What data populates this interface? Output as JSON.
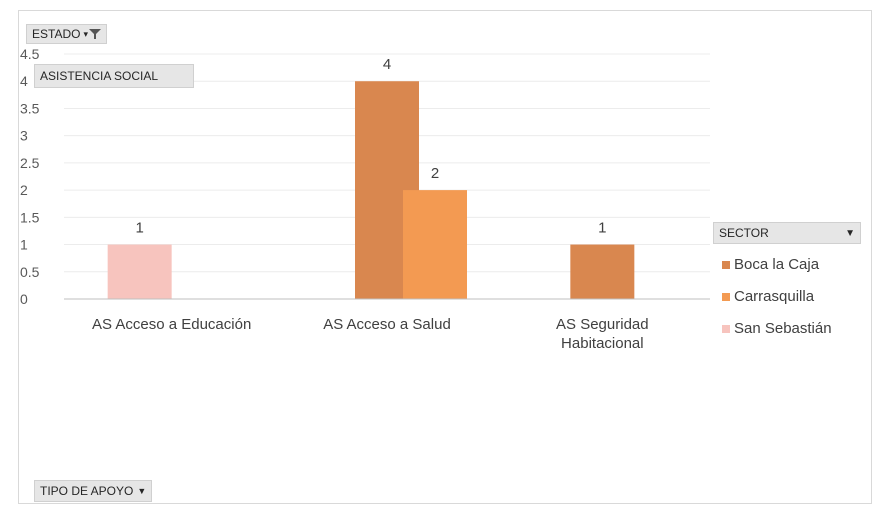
{
  "filters": {
    "estado_label": "ESTADO",
    "asistencia_label": "ASISTENCIA SOCIAL",
    "tipo_label": "TIPO DE APOYO"
  },
  "legend": {
    "title": "SECTOR",
    "items": [
      {
        "label": "Boca la Caja",
        "color": "#d9874f"
      },
      {
        "label": "Carrasquilla",
        "color": "#f39a52"
      },
      {
        "label": "San Sebastián",
        "color": "#f7c4be"
      }
    ]
  },
  "chart_data": {
    "type": "bar",
    "categories": [
      [
        "AS Acceso a Educación"
      ],
      [
        "AS Acceso a Salud"
      ],
      [
        "AS Seguridad",
        "Habitacional"
      ]
    ],
    "series": [
      {
        "name": "Boca la Caja",
        "color": "#d9874f",
        "values": [
          null,
          4,
          1
        ]
      },
      {
        "name": "Carrasquilla",
        "color": "#f39a52",
        "values": [
          null,
          2,
          null
        ]
      },
      {
        "name": "San Sebastián",
        "color": "#f7c4be",
        "values": [
          1,
          null,
          null
        ]
      }
    ],
    "ylim": [
      0,
      4.5
    ],
    "yticks": [
      "0",
      "0.5",
      "1",
      "1.5",
      "2",
      "2.5",
      "3",
      "3.5",
      "4",
      "4.5"
    ],
    "data_labels": true,
    "grid": true,
    "legend_position": "right"
  }
}
